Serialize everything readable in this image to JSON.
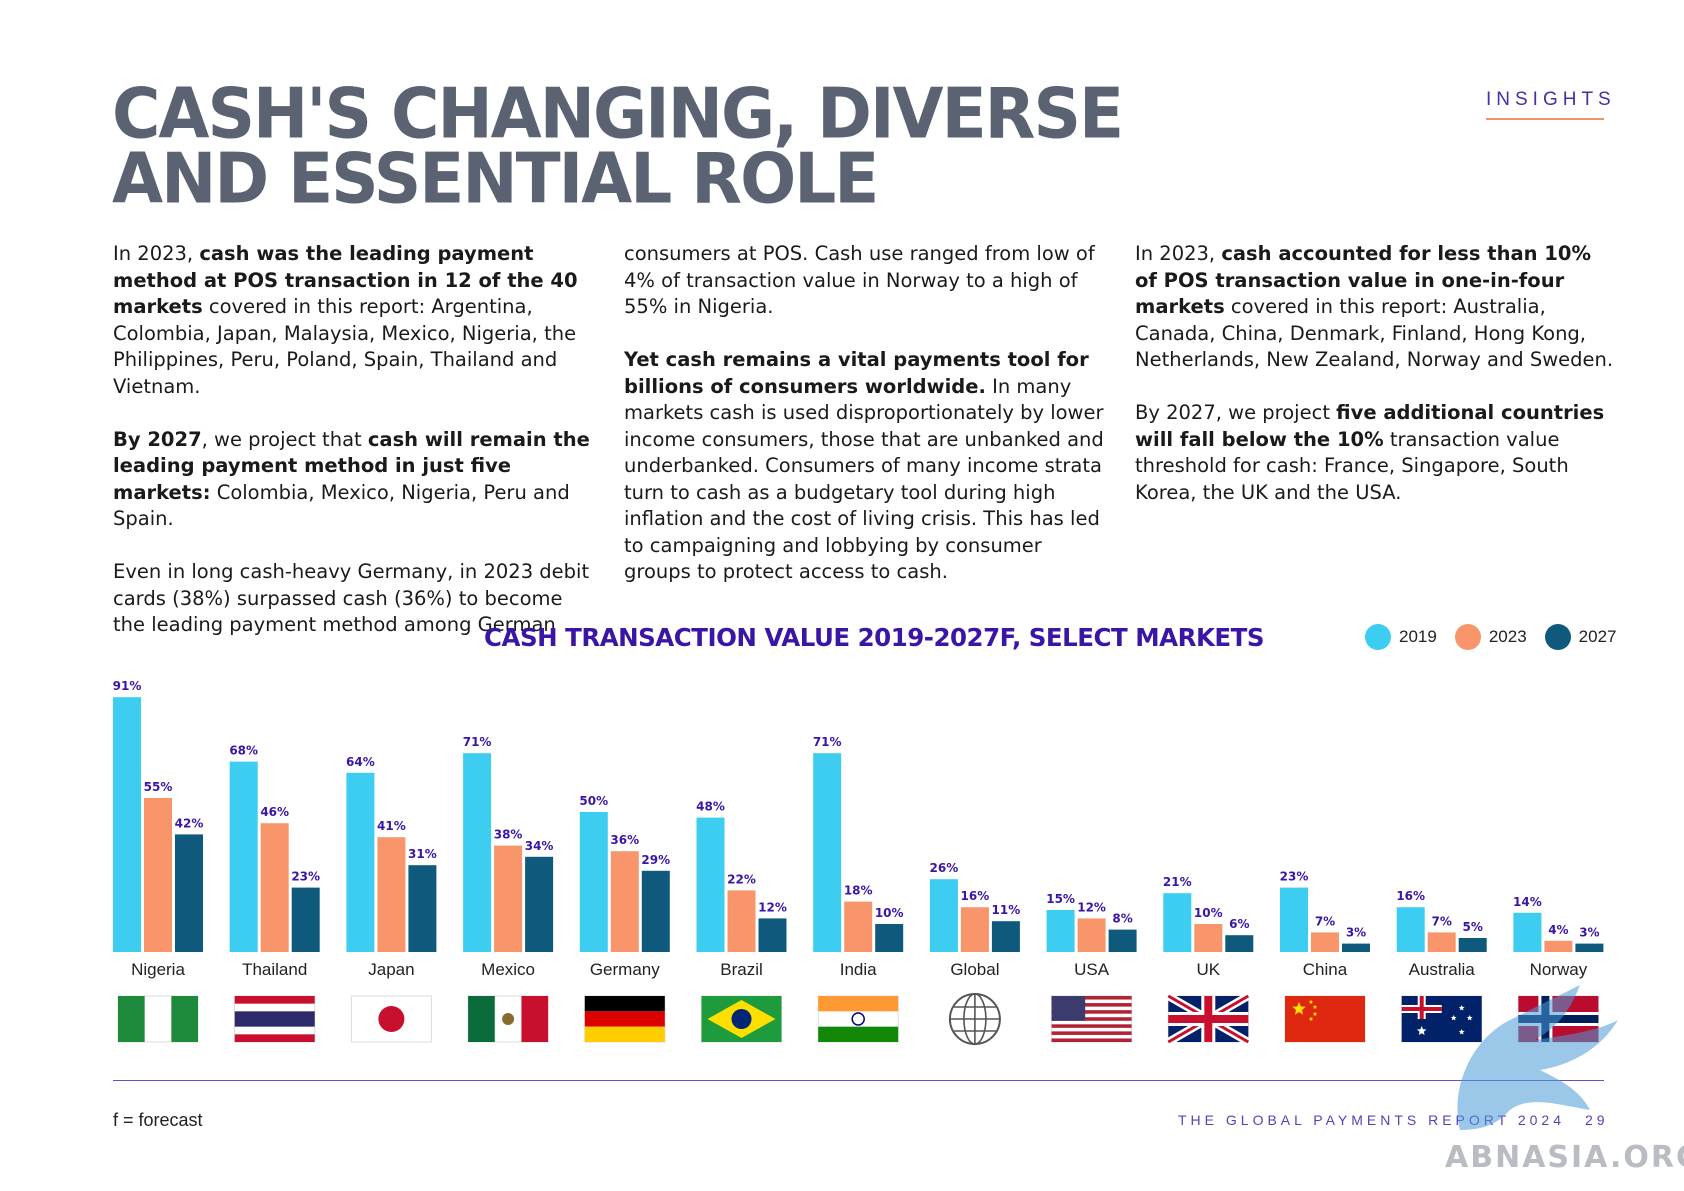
{
  "header": {
    "title_line1": "CASH'S CHANGING, DIVERSE",
    "title_line2": "AND ESSENTIAL ROLE",
    "section_tag": "INSIGHTS"
  },
  "columns": {
    "col1": {
      "p1_a": "In 2023, ",
      "p1_b": "cash was the leading payment method at POS transaction in 12 of the 40 markets",
      "p1_c": " covered in this report: Argentina, Colombia, Japan, Malaysia, Mexico, Nigeria, the Philippines, Peru, Poland, Spain, Thailand and Vietnam.",
      "p2_a": "By 2027",
      "p2_b": ", we project that ",
      "p2_c": "cash will remain the leading payment method in just five markets:",
      "p2_d": " Colombia, Mexico, Nigeria, Peru and Spain.",
      "p3": "Even in long cash-heavy Germany, in 2023 debit cards (38%) surpassed cash (36%) to become the leading payment method among German"
    },
    "col2": {
      "p1": "consumers at POS. Cash use ranged from low of 4% of transaction value in Norway to a high of 55% in Nigeria.",
      "p2_a": "Yet cash remains a vital payments tool for billions of consumers worldwide.",
      "p2_b": " In many markets cash is used disproportionately by lower income consumers, those that are unbanked and underbanked. Consumers of many income strata turn to cash as a budgetary tool during high inflation and the cost of living crisis. This has led to campaigning and lobbying by consumer groups to protect access to cash."
    },
    "col3": {
      "p1_a": "In 2023, ",
      "p1_b": "cash accounted for less than 10% of POS transaction value in one-in-four markets",
      "p1_c": " covered in this report: Australia, Canada, China, Denmark, Finland, Hong Kong, Netherlands, New Zealand, Norway and Sweden.",
      "p2_a": "By 2027, we project ",
      "p2_b": "five additional countries will fall below the 10%",
      "p2_c": " transaction value threshold for cash: France, Singapore, South Korea, the UK and the USA."
    }
  },
  "chart_data": {
    "type": "bar",
    "title": "CASH TRANSACTION VALUE 2019-2027F, SELECT MARKETS",
    "categories": [
      "Nigeria",
      "Thailand",
      "Japan",
      "Mexico",
      "Germany",
      "Brazil",
      "India",
      "Global",
      "USA",
      "UK",
      "China",
      "Australia",
      "Norway"
    ],
    "series": [
      {
        "name": "2019",
        "color": "#3ccdf0",
        "values": [
          91,
          68,
          64,
          71,
          50,
          48,
          71,
          26,
          15,
          21,
          23,
          16,
          14
        ]
      },
      {
        "name": "2023",
        "color": "#f8956a",
        "values": [
          55,
          46,
          41,
          38,
          36,
          22,
          18,
          16,
          12,
          10,
          7,
          7,
          4
        ]
      },
      {
        "name": "2027",
        "color": "#0f5a7c",
        "values": [
          42,
          23,
          31,
          34,
          29,
          12,
          10,
          11,
          8,
          6,
          3,
          5,
          3
        ]
      }
    ],
    "value_suffix": "%",
    "ylim": [
      0,
      100
    ],
    "legend_position": "top-right",
    "grid": false,
    "category_icons": [
      "nigeria-flag-icon",
      "thailand-flag-icon",
      "japan-flag-icon",
      "mexico-flag-icon",
      "germany-flag-icon",
      "brazil-flag-icon",
      "india-flag-icon",
      "globe-icon",
      "usa-flag-icon",
      "uk-flag-icon",
      "china-flag-icon",
      "australia-flag-icon",
      "norway-flag-icon"
    ]
  },
  "footer": {
    "footnote": "f = forecast",
    "report_name": "THE GLOBAL PAYMENTS REPORT 2024",
    "page_number": "29",
    "watermark": "ABNASIA.ORG"
  }
}
